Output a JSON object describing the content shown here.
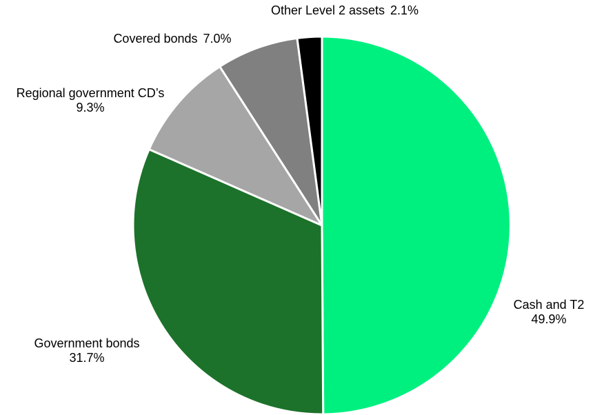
{
  "chart_data": {
    "type": "pie",
    "title": "",
    "start_angle_deg": 0,
    "direction": "clockwise",
    "slice_border_color": "#ffffff",
    "slices": [
      {
        "name": "Cash and T2",
        "value": 49.9,
        "value_label": "49.9%",
        "color": "#00f080",
        "label_layout": "two-line"
      },
      {
        "name": "Government bonds",
        "value": 31.7,
        "value_label": "31.7%",
        "color": "#1c722a",
        "label_layout": "two-line"
      },
      {
        "name": "Regional government CD’s",
        "value": 9.3,
        "value_label": "9.3%",
        "color": "#a6a6a6",
        "label_layout": "two-line"
      },
      {
        "name": "Covered bonds",
        "value": 7.0,
        "value_label": "7.0%",
        "color": "#808080",
        "label_layout": "inline"
      },
      {
        "name": "Other Level 2 assets",
        "value": 2.1,
        "value_label": "2.1%",
        "color": "#000000",
        "label_layout": "inline"
      }
    ]
  }
}
